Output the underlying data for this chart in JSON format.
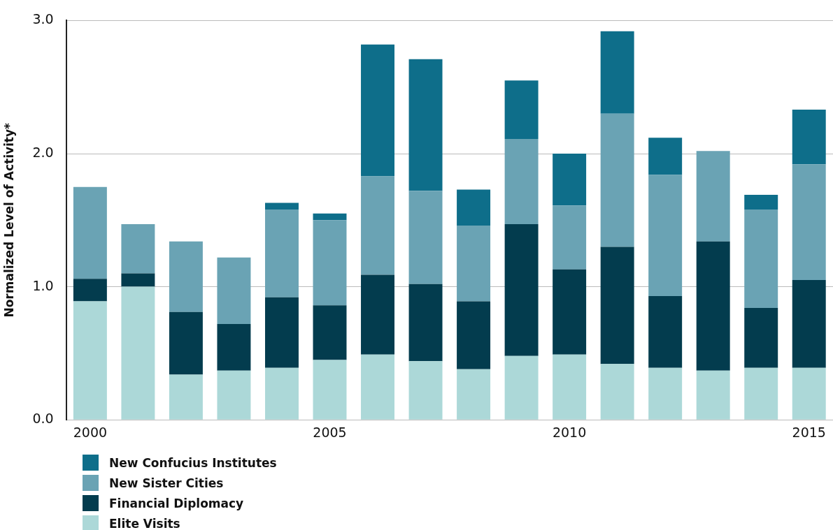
{
  "chart_data": {
    "type": "bar",
    "stacked": true,
    "ylabel": "Normalized Level of Activity*",
    "categories": [
      "2000",
      null,
      null,
      null,
      null,
      "2005",
      null,
      null,
      null,
      null,
      "2010",
      null,
      null,
      null,
      null,
      "2015"
    ],
    "series": [
      {
        "name": "Elite Visits",
        "color": "#acd8d8",
        "values": [
          0.89,
          1.0,
          0.34,
          0.37,
          0.39,
          0.45,
          0.49,
          0.44,
          0.38,
          0.48,
          0.49,
          0.42,
          0.39,
          0.37,
          0.39,
          0.39
        ]
      },
      {
        "name": "Financial Diplomacy",
        "color": "#033c4e",
        "values": [
          0.17,
          0.1,
          0.47,
          0.35,
          0.53,
          0.41,
          0.6,
          0.58,
          0.51,
          0.99,
          0.64,
          0.88,
          0.54,
          0.97,
          0.45,
          0.66
        ]
      },
      {
        "name": "New Sister Cities",
        "color": "#6aa3b4",
        "values": [
          0.69,
          0.37,
          0.53,
          0.5,
          0.66,
          0.64,
          0.74,
          0.7,
          0.57,
          0.64,
          0.48,
          1.0,
          0.91,
          0.68,
          0.74,
          0.87
        ]
      },
      {
        "name": "New Confucius Institutes",
        "color": "#0e6e8a",
        "values": [
          0,
          0,
          0,
          0,
          0.05,
          0.05,
          0.99,
          0.99,
          0.27,
          0.44,
          0.39,
          0.62,
          0.28,
          0,
          0.11,
          0.41
        ]
      }
    ],
    "ylim": [
      0,
      3
    ],
    "yticks": [
      {
        "value": 0,
        "label": "0.0"
      },
      {
        "value": 1,
        "label": "1.0"
      },
      {
        "value": 2,
        "label": "2.0"
      },
      {
        "value": 3,
        "label": "3.0"
      }
    ],
    "grid": "y",
    "legend": "bottom left"
  }
}
